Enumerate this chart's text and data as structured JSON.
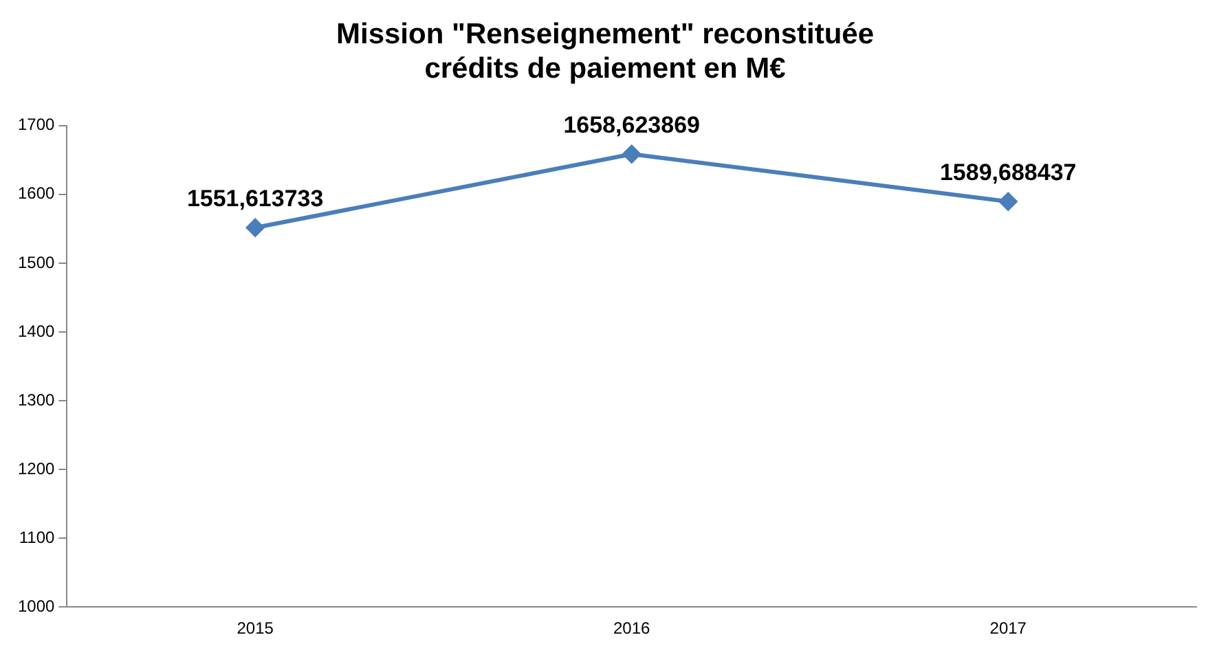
{
  "chart_data": {
    "type": "line",
    "title": [
      "Mission \"Renseignement\" reconstituée",
      "crédits de paiement en M€"
    ],
    "categories": [
      "2015",
      "2016",
      "2017"
    ],
    "series": [
      {
        "color": "#4a7ebb",
        "values": [
          1551.613733,
          1658.623869,
          1589.688437
        ],
        "value_labels": [
          "1551,613733",
          "1658,623869",
          "1589,688437"
        ]
      }
    ],
    "ylim": [
      1000,
      1700
    ],
    "yticks": [
      1000,
      1100,
      1200,
      1300,
      1400,
      1500,
      1600,
      1700
    ],
    "grid": false,
    "legend": false,
    "marker": "diamond",
    "line_style": "solid"
  }
}
